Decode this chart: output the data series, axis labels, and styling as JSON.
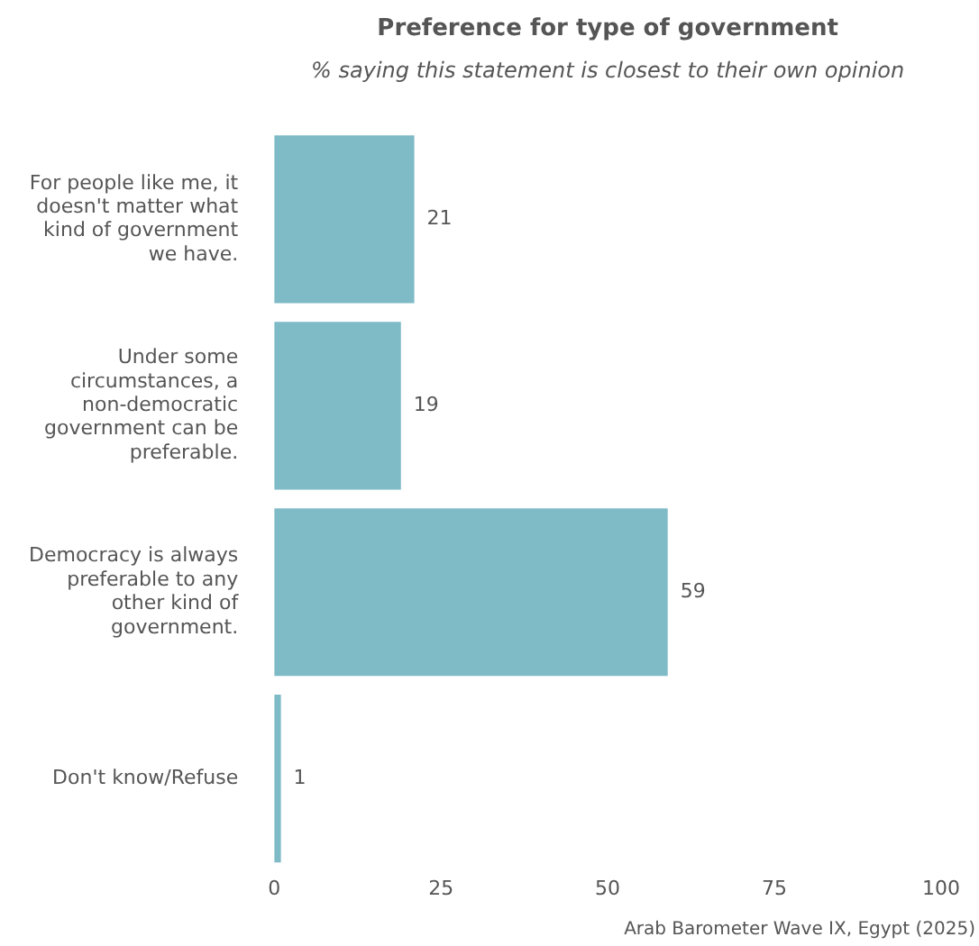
{
  "chart_data": {
    "type": "bar",
    "orientation": "horizontal",
    "title": "Preference for type of government",
    "subtitle": "% saying this statement is closest to their own opinion",
    "categories": [
      "For people like me, it doesn't matter what kind of government we have.",
      "Under some circumstances, a non-democratic government can be preferable.",
      "Democracy is always preferable to any other kind of government.",
      "Don't know/Refuse"
    ],
    "values": [
      21,
      19,
      59,
      1
    ],
    "color": "#7fbac7",
    "data_labels": true,
    "xlim": [
      0,
      100
    ],
    "xticks": [
      0,
      25,
      50,
      75,
      100
    ],
    "grid": false,
    "legend": false,
    "annotations": [
      "Arab Barometer Wave IX, Egypt (2025)"
    ]
  }
}
